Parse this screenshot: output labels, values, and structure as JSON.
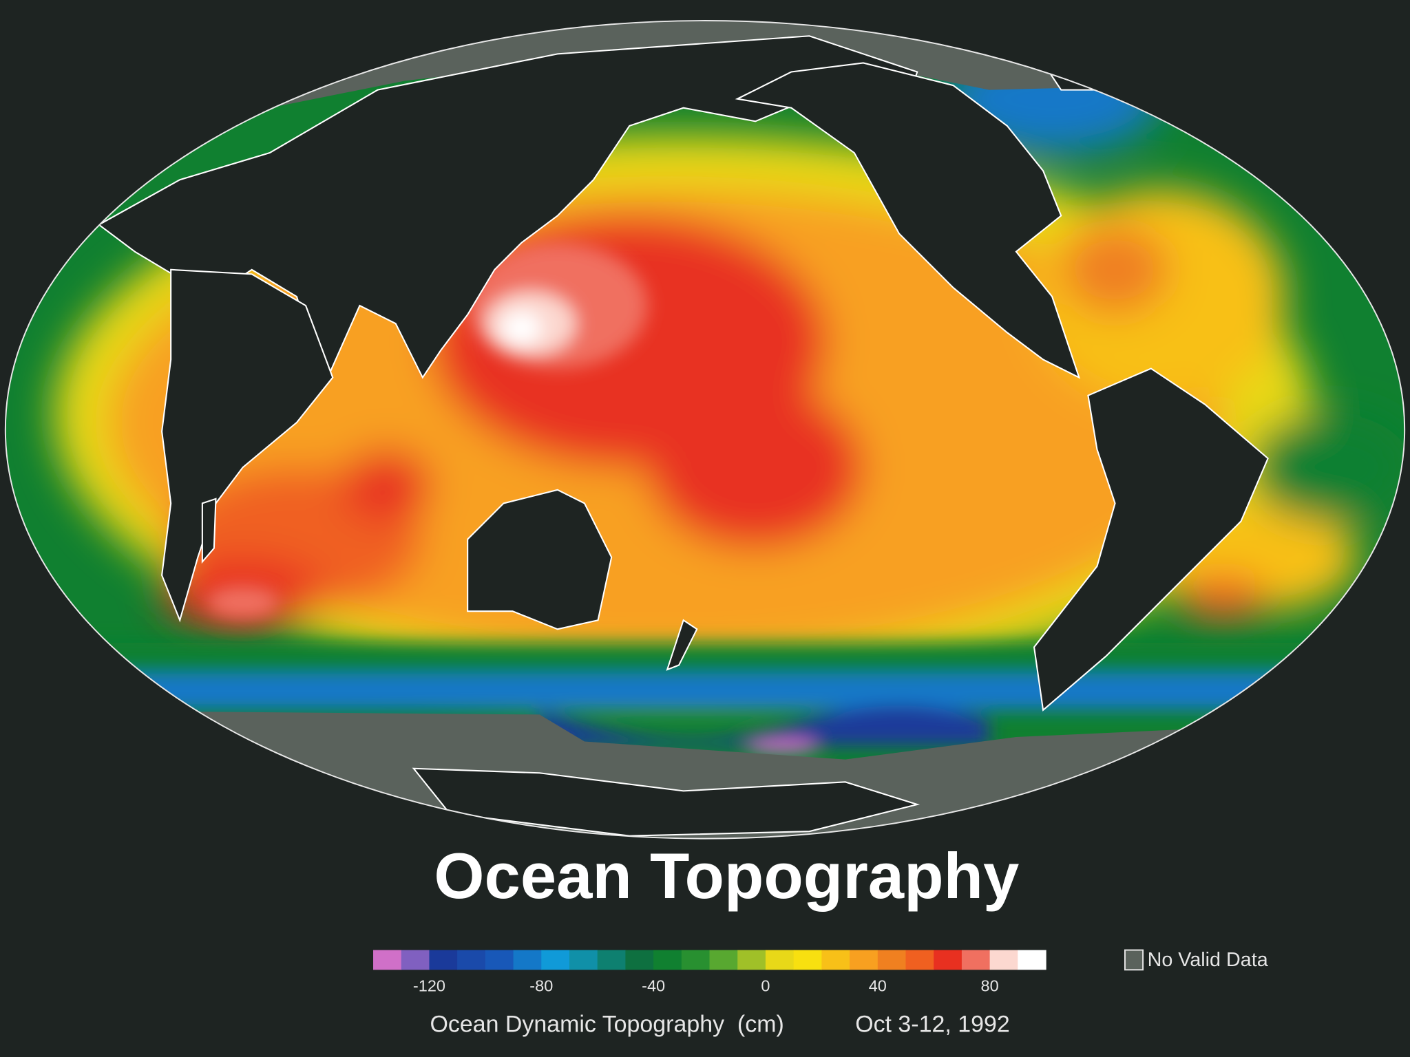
{
  "title": "Ocean Topography",
  "colorbar": {
    "label": "Ocean Dynamic Topography  (cm)",
    "lim": [
      -140,
      100
    ],
    "ticks": [
      -120,
      -80,
      -40,
      0,
      40,
      80
    ],
    "colors": [
      "#d070c8",
      "#8060c0",
      "#1a3a9a",
      "#1a4aaa",
      "#1858b8",
      "#1478c8",
      "#109ad8",
      "#1090a8",
      "#0e8070",
      "#0e7040",
      "#108030",
      "#289030",
      "#58a830",
      "#a0c028",
      "#e8d818",
      "#f8e010",
      "#f8c018",
      "#f8a020",
      "#f08020",
      "#f06020",
      "#e83020",
      "#f07060",
      "#fcd8d0",
      "#ffffff"
    ]
  },
  "date": "Oct 3-12, 1992",
  "no_data_label": "No Valid Data",
  "no_data_color": "#5a625c"
}
